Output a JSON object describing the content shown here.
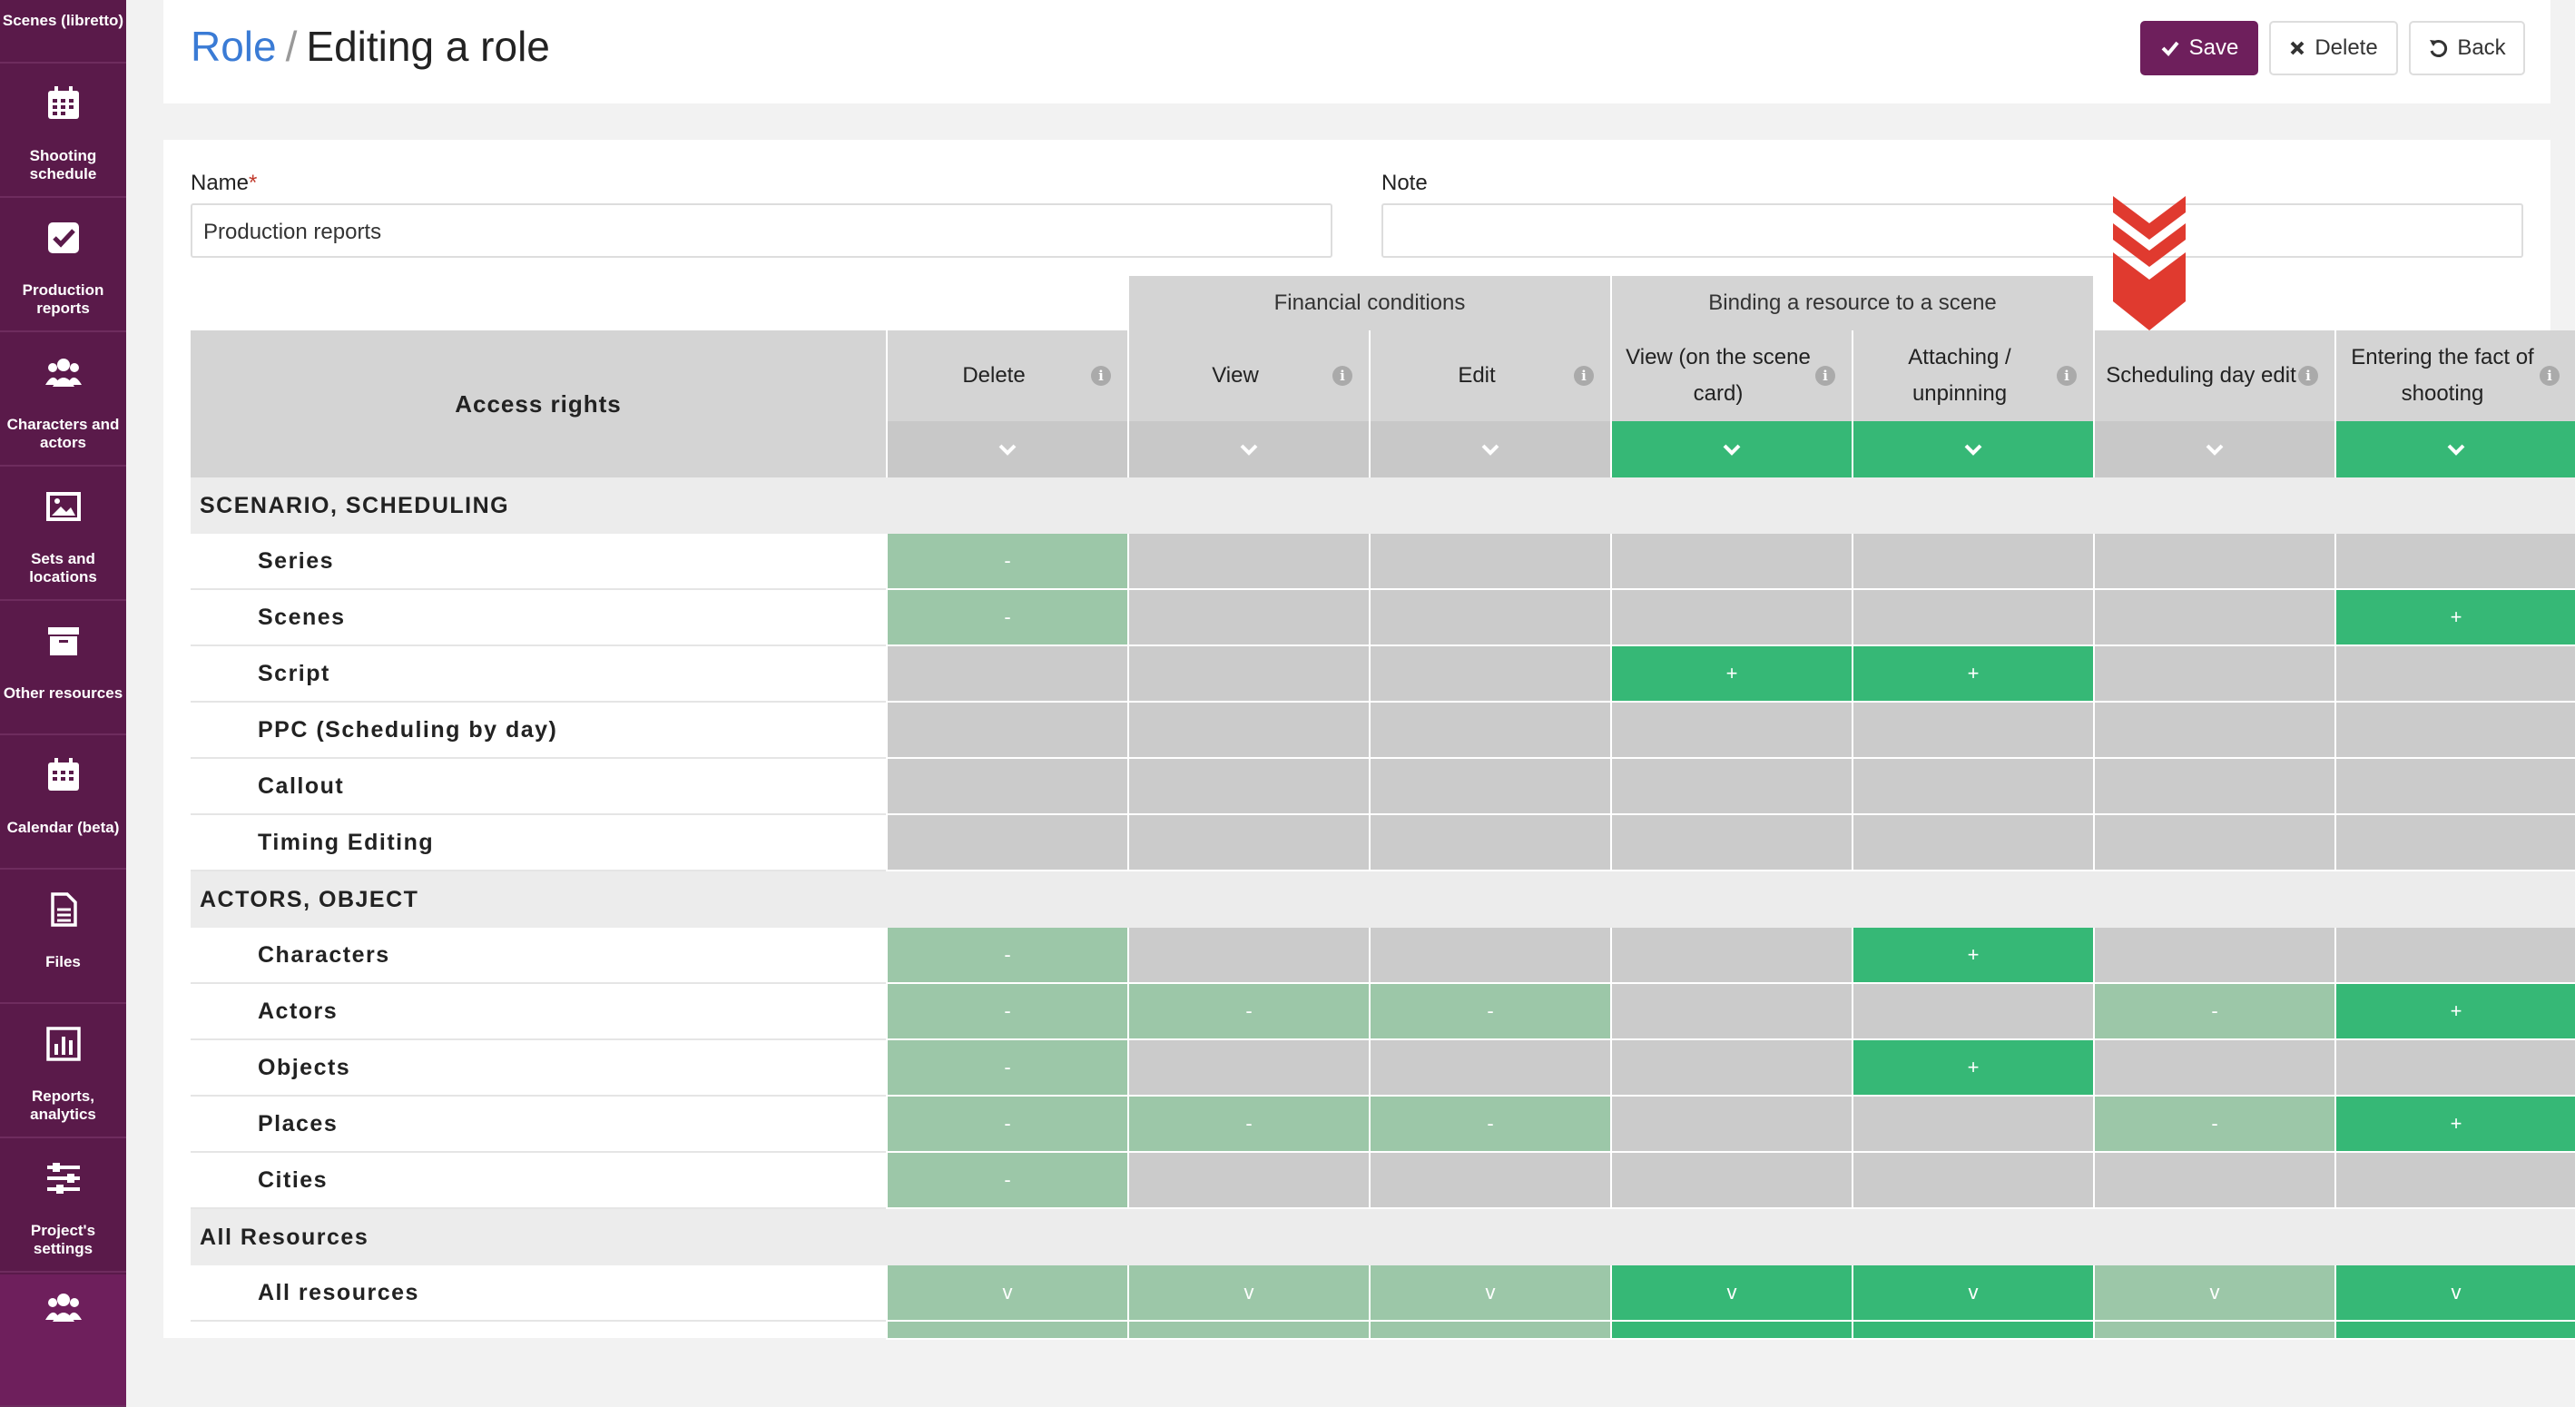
{
  "sidebar": {
    "top_label": "Scenes (libretto)",
    "items": [
      {
        "label": "Shooting schedule",
        "icon": "calendar-grid-icon"
      },
      {
        "label": "Production reports",
        "icon": "checkbox-icon"
      },
      {
        "label": "Characters and actors",
        "icon": "users-icon"
      },
      {
        "label": "Sets and locations",
        "icon": "image-icon"
      },
      {
        "label": "Other resources",
        "icon": "archive-box-icon"
      },
      {
        "label": "Calendar (beta)",
        "icon": "calendar-icon"
      },
      {
        "label": "Files",
        "icon": "file-icon"
      },
      {
        "label": "Reports, analytics",
        "icon": "bar-chart-icon"
      },
      {
        "label": "Project's settings",
        "icon": "sliders-icon"
      },
      {
        "label": "",
        "icon": "users-icon"
      }
    ]
  },
  "header": {
    "crumb_root": "Role",
    "crumb_sep": "/",
    "crumb_title": "Editing a role",
    "save_label": "Save",
    "delete_label": "Delete",
    "back_label": "Back"
  },
  "form": {
    "name_label": "Name",
    "name_required": "*",
    "name_value": "Production reports",
    "note_label": "Note",
    "note_value": ""
  },
  "table": {
    "access_rights_label": "Access rights",
    "groups": [
      {
        "label": "Financial conditions"
      },
      {
        "label": "Binding a resource to a scene"
      }
    ],
    "columns": [
      {
        "label": "Delete",
        "enabled": false
      },
      {
        "label": "View",
        "enabled": false
      },
      {
        "label": "Edit",
        "enabled": false
      },
      {
        "label": "View (on the scene card)",
        "enabled": true
      },
      {
        "label": "Attaching / unpinning",
        "enabled": true
      },
      {
        "label": "Scheduling day edit",
        "enabled": false
      },
      {
        "label": "Entering the fact of shooting",
        "enabled": true
      }
    ],
    "sections": [
      {
        "title": "SCENARIO, SCHEDULING",
        "rows": [
          {
            "label": "Series",
            "cells": [
              [
                "light",
                "-"
              ],
              [
                "",
                ""
              ],
              [
                "",
                ""
              ],
              [
                "",
                ""
              ],
              [
                "",
                ""
              ],
              [
                "",
                ""
              ],
              [
                "",
                ""
              ]
            ]
          },
          {
            "label": "Scenes",
            "cells": [
              [
                "light",
                "-"
              ],
              [
                "",
                ""
              ],
              [
                "",
                ""
              ],
              [
                "",
                ""
              ],
              [
                "",
                ""
              ],
              [
                "",
                ""
              ],
              [
                "green",
                "+"
              ]
            ]
          },
          {
            "label": "Script",
            "cells": [
              [
                "",
                ""
              ],
              [
                "",
                ""
              ],
              [
                "",
                ""
              ],
              [
                "green",
                "+"
              ],
              [
                "green",
                "+"
              ],
              [
                "",
                ""
              ],
              [
                "",
                ""
              ]
            ]
          },
          {
            "label": "PPC (Scheduling by day)",
            "cells": [
              [
                "",
                ""
              ],
              [
                "",
                ""
              ],
              [
                "",
                ""
              ],
              [
                "",
                ""
              ],
              [
                "",
                ""
              ],
              [
                "",
                ""
              ],
              [
                "",
                ""
              ]
            ]
          },
          {
            "label": "Callout",
            "cells": [
              [
                "",
                ""
              ],
              [
                "",
                ""
              ],
              [
                "",
                ""
              ],
              [
                "",
                ""
              ],
              [
                "",
                ""
              ],
              [
                "",
                ""
              ],
              [
                "",
                ""
              ]
            ]
          },
          {
            "label": "Timing Editing",
            "cells": [
              [
                "",
                ""
              ],
              [
                "",
                ""
              ],
              [
                "",
                ""
              ],
              [
                "",
                ""
              ],
              [
                "",
                ""
              ],
              [
                "",
                ""
              ],
              [
                "",
                ""
              ]
            ]
          }
        ]
      },
      {
        "title": "ACTORS, OBJECT",
        "rows": [
          {
            "label": "Characters",
            "cells": [
              [
                "light",
                "-"
              ],
              [
                "",
                ""
              ],
              [
                "",
                ""
              ],
              [
                "",
                ""
              ],
              [
                "green",
                "+"
              ],
              [
                "",
                ""
              ],
              [
                "",
                ""
              ]
            ]
          },
          {
            "label": "Actors",
            "cells": [
              [
                "light",
                "-"
              ],
              [
                "light",
                "-"
              ],
              [
                "light",
                "-"
              ],
              [
                "",
                ""
              ],
              [
                "",
                ""
              ],
              [
                "light",
                "-"
              ],
              [
                "green",
                "+"
              ]
            ]
          },
          {
            "label": "Objects",
            "cells": [
              [
                "light",
                "-"
              ],
              [
                "",
                ""
              ],
              [
                "",
                ""
              ],
              [
                "",
                ""
              ],
              [
                "green",
                "+"
              ],
              [
                "",
                ""
              ],
              [
                "",
                ""
              ]
            ]
          },
          {
            "label": "Places",
            "cells": [
              [
                "light",
                "-"
              ],
              [
                "light",
                "-"
              ],
              [
                "light",
                "-"
              ],
              [
                "",
                ""
              ],
              [
                "",
                ""
              ],
              [
                "light",
                "-"
              ],
              [
                "green",
                "+"
              ]
            ]
          },
          {
            "label": "Cities",
            "cells": [
              [
                "light",
                "-"
              ],
              [
                "",
                ""
              ],
              [
                "",
                ""
              ],
              [
                "",
                ""
              ],
              [
                "",
                ""
              ],
              [
                "",
                ""
              ],
              [
                "",
                ""
              ]
            ]
          }
        ]
      },
      {
        "title": "All Resources",
        "rows": [
          {
            "label": "All resources",
            "cells": [
              [
                "light",
                "v"
              ],
              [
                "light",
                "v"
              ],
              [
                "light",
                "v"
              ],
              [
                "green",
                "v"
              ],
              [
                "green",
                "v"
              ],
              [
                "light",
                "v"
              ],
              [
                "green",
                "v"
              ]
            ]
          }
        ]
      }
    ]
  },
  "colors": {
    "brand": "#5a1a4a",
    "green": "#36b876",
    "light_green": "#9cc7a8",
    "gray": "#cbcbcb",
    "arrow": "#e03a2f"
  }
}
